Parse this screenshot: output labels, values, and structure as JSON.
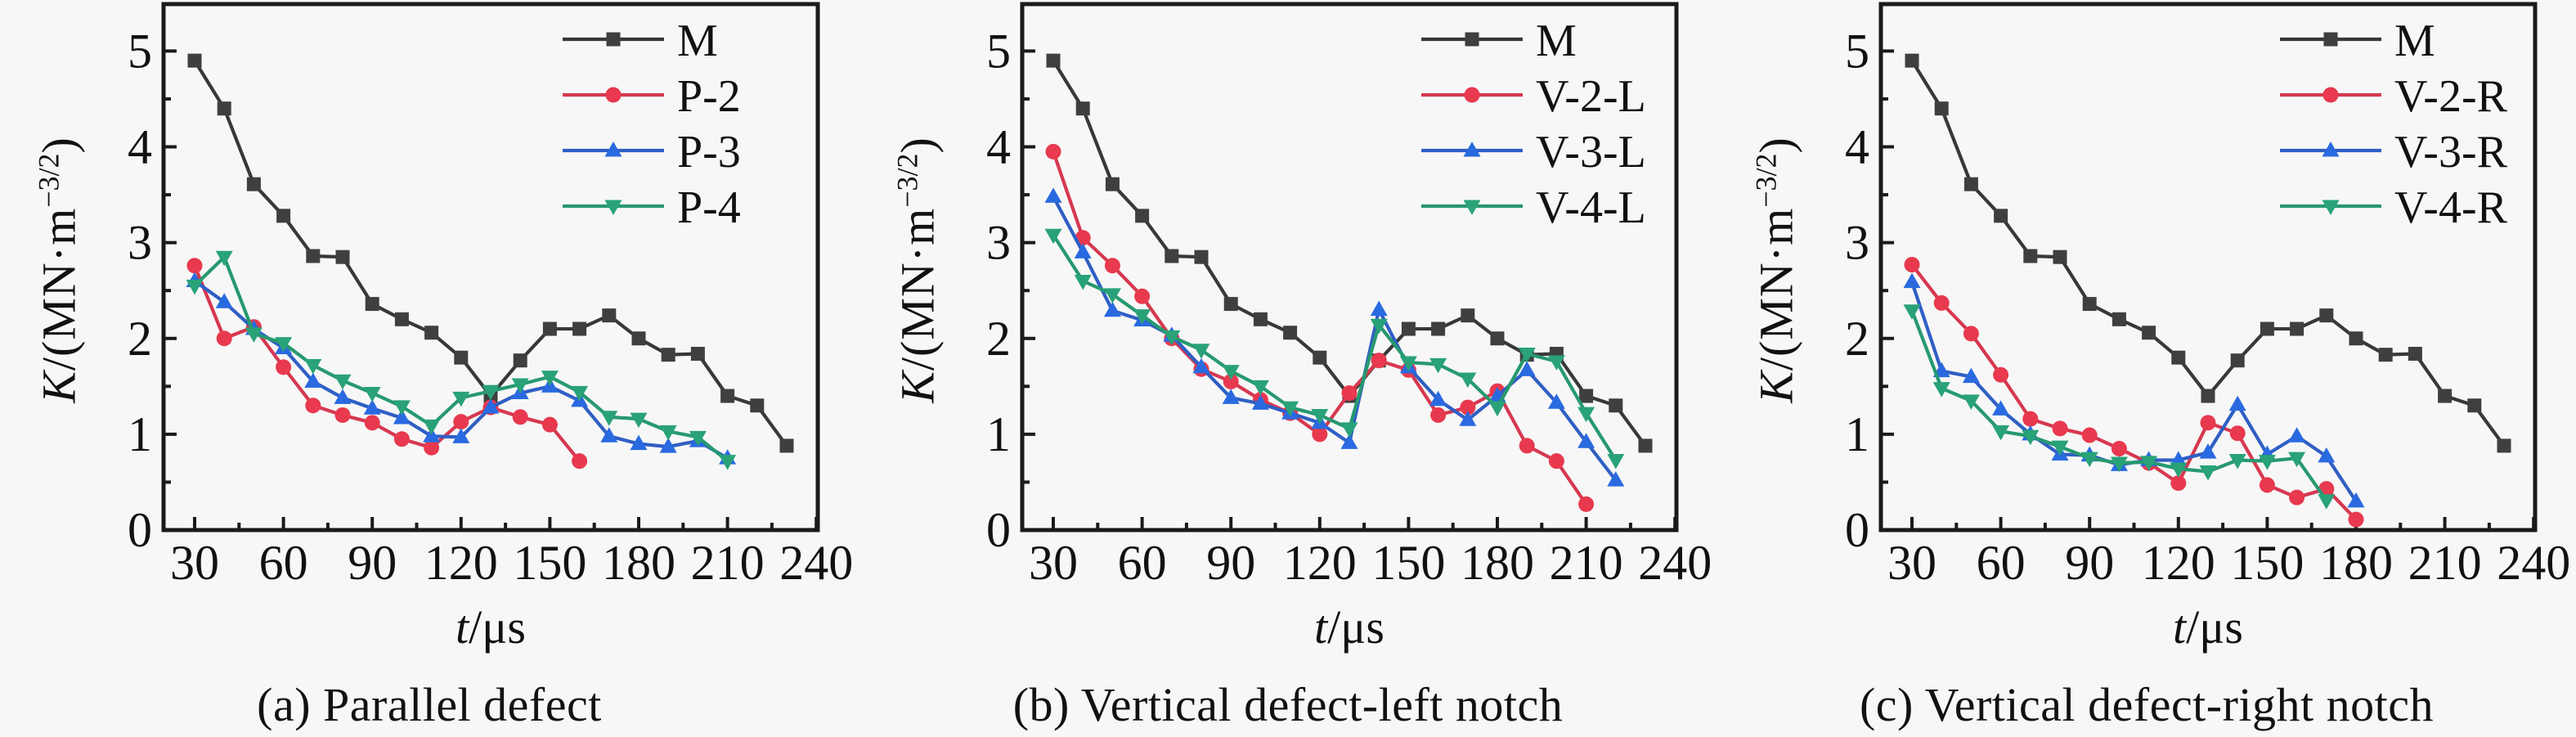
{
  "figure": {
    "background": "#f7f7f7",
    "ylabel": {
      "sym": "K",
      "unit_open": "/(MN·m",
      "exp": "−3/2",
      "unit_close": ")"
    },
    "xlabel": {
      "sym": "t",
      "rest": "/μs"
    }
  },
  "colors": {
    "main_series": "#3f3f3f",
    "red_series": "#e8394e",
    "blue_series": "#2a6ae0",
    "green_series": "#29a277",
    "axis": "#1a1a1a",
    "background": "#f7f7f7"
  },
  "chart_data": [
    {
      "type": "line",
      "caption": "(a) Parallel defect",
      "xlabel": "t/μs",
      "ylabel": "K/(MN·m−3/2)",
      "xlim": [
        19.5,
        240.5
      ],
      "ylim": [
        0,
        5.49
      ],
      "xticks": [
        30,
        60,
        90,
        120,
        150,
        180,
        210,
        240
      ],
      "yticks": [
        0,
        1,
        2,
        3,
        4,
        5
      ],
      "grid": false,
      "legend_position": "upper-right",
      "series": [
        {
          "name": "M",
          "marker": "square",
          "color": "#3f3f3f",
          "line_color": "#383838",
          "t_start": 30,
          "t_step": 10,
          "k": [
            4.9,
            4.4,
            3.61,
            3.28,
            2.86,
            2.85,
            2.36,
            2.2,
            2.06,
            1.8,
            1.4,
            1.77,
            2.1,
            2.1,
            2.24,
            2.0,
            1.83,
            1.84,
            1.4,
            1.3,
            0.88
          ]
        },
        {
          "name": "P-2",
          "marker": "circle",
          "color": "#e8394e",
          "line_color": "#d63850",
          "t_start": 30,
          "t_step": 10,
          "k": [
            2.76,
            2.0,
            2.12,
            1.7,
            1.3,
            1.2,
            1.12,
            0.95,
            0.86,
            1.13,
            1.28,
            1.18,
            1.1,
            0.72
          ]
        },
        {
          "name": "P-3",
          "marker": "triangle-up",
          "color": "#2a6ae0",
          "line_color": "#2f5fc4",
          "t_start": 30,
          "t_step": 10,
          "k": [
            2.6,
            2.38,
            2.1,
            1.9,
            1.55,
            1.38,
            1.27,
            1.17,
            0.98,
            0.97,
            1.28,
            1.43,
            1.5,
            1.35,
            0.98,
            0.9,
            0.87,
            0.93,
            0.75
          ]
        },
        {
          "name": "P-4",
          "marker": "triangle-down",
          "color": "#29a277",
          "line_color": "#27996f",
          "t_start": 30,
          "t_step": 10,
          "k": [
            2.55,
            2.85,
            2.05,
            1.95,
            1.72,
            1.56,
            1.43,
            1.29,
            1.09,
            1.38,
            1.45,
            1.52,
            1.6,
            1.44,
            1.18,
            1.16,
            1.03,
            0.97,
            0.72
          ]
        }
      ]
    },
    {
      "type": "line",
      "caption": "(b) Vertical defect-left notch",
      "xlabel": "t/μs",
      "ylabel": "K/(MN·m−3/2)",
      "xlim": [
        19.5,
        240.5
      ],
      "ylim": [
        0,
        5.49
      ],
      "xticks": [
        30,
        60,
        90,
        120,
        150,
        180,
        210,
        240
      ],
      "yticks": [
        0,
        1,
        2,
        3,
        4,
        5
      ],
      "grid": false,
      "legend_position": "upper-right",
      "series": [
        {
          "name": "M",
          "marker": "square",
          "color": "#3f3f3f",
          "line_color": "#383838",
          "t_start": 30,
          "t_step": 10,
          "k": [
            4.9,
            4.4,
            3.61,
            3.28,
            2.86,
            2.85,
            2.36,
            2.2,
            2.06,
            1.8,
            1.4,
            1.77,
            2.1,
            2.1,
            2.24,
            2.0,
            1.83,
            1.84,
            1.4,
            1.3,
            0.88
          ]
        },
        {
          "name": "V-2-L",
          "marker": "circle",
          "color": "#e8394e",
          "line_color": "#d63850",
          "t_start": 30,
          "t_step": 10,
          "k": [
            3.95,
            3.05,
            2.76,
            2.44,
            2.0,
            1.68,
            1.55,
            1.36,
            1.22,
            1.0,
            1.43,
            1.77,
            1.67,
            1.2,
            1.28,
            1.45,
            0.88,
            0.72,
            0.27
          ]
        },
        {
          "name": "V-3-L",
          "marker": "triangle-up",
          "color": "#2a6ae0",
          "line_color": "#2f5fc4",
          "t_start": 30,
          "t_step": 10,
          "k": [
            3.48,
            2.9,
            2.29,
            2.19,
            2.03,
            1.7,
            1.38,
            1.32,
            1.22,
            1.12,
            0.91,
            2.3,
            1.7,
            1.36,
            1.15,
            1.4,
            1.67,
            1.33,
            0.92,
            0.52
          ]
        },
        {
          "name": "V-4-L",
          "marker": "triangle-down",
          "color": "#29a277",
          "line_color": "#27996f",
          "t_start": 30,
          "t_step": 10,
          "k": [
            3.08,
            2.6,
            2.46,
            2.24,
            2.02,
            1.88,
            1.66,
            1.5,
            1.28,
            1.2,
            1.06,
            2.14,
            1.75,
            1.73,
            1.58,
            1.28,
            1.84,
            1.76,
            1.22,
            0.73
          ]
        }
      ]
    },
    {
      "type": "line",
      "caption": "(c) Vertical defect-right notch",
      "xlabel": "t/μs",
      "ylabel": "K/(MN·m−3/2)",
      "xlim": [
        19.5,
        240.5
      ],
      "ylim": [
        0,
        5.49
      ],
      "xticks": [
        30,
        60,
        90,
        120,
        150,
        180,
        210,
        240
      ],
      "yticks": [
        0,
        1,
        2,
        3,
        4,
        5
      ],
      "grid": false,
      "legend_position": "upper-right",
      "series": [
        {
          "name": "M",
          "marker": "square",
          "color": "#3f3f3f",
          "line_color": "#383838",
          "t_start": 30,
          "t_step": 10,
          "k": [
            4.9,
            4.4,
            3.61,
            3.28,
            2.86,
            2.85,
            2.36,
            2.2,
            2.06,
            1.8,
            1.4,
            1.77,
            2.1,
            2.1,
            2.24,
            2.0,
            1.83,
            1.84,
            1.4,
            1.3,
            0.88
          ]
        },
        {
          "name": "V-2-R",
          "marker": "circle",
          "color": "#e8394e",
          "line_color": "#d63850",
          "t_start": 30,
          "t_step": 10,
          "k": [
            2.77,
            2.37,
            2.05,
            1.62,
            1.16,
            1.06,
            0.99,
            0.85,
            0.7,
            0.49,
            1.12,
            1.01,
            0.47,
            0.34,
            0.43,
            0.11
          ]
        },
        {
          "name": "V-3-R",
          "marker": "triangle-up",
          "color": "#2a6ae0",
          "line_color": "#2f5fc4",
          "t_start": 30,
          "t_step": 10,
          "k": [
            2.59,
            1.66,
            1.6,
            1.26,
            1.0,
            0.79,
            0.78,
            0.68,
            0.73,
            0.73,
            0.81,
            1.31,
            0.79,
            0.98,
            0.77,
            0.3
          ]
        },
        {
          "name": "V-4-R",
          "marker": "triangle-down",
          "color": "#29a277",
          "line_color": "#27996f",
          "t_start": 30,
          "t_step": 10,
          "k": [
            2.29,
            1.48,
            1.35,
            1.03,
            0.98,
            0.87,
            0.75,
            0.7,
            0.71,
            0.64,
            0.61,
            0.73,
            0.72,
            0.75,
            0.31
          ]
        }
      ]
    }
  ]
}
